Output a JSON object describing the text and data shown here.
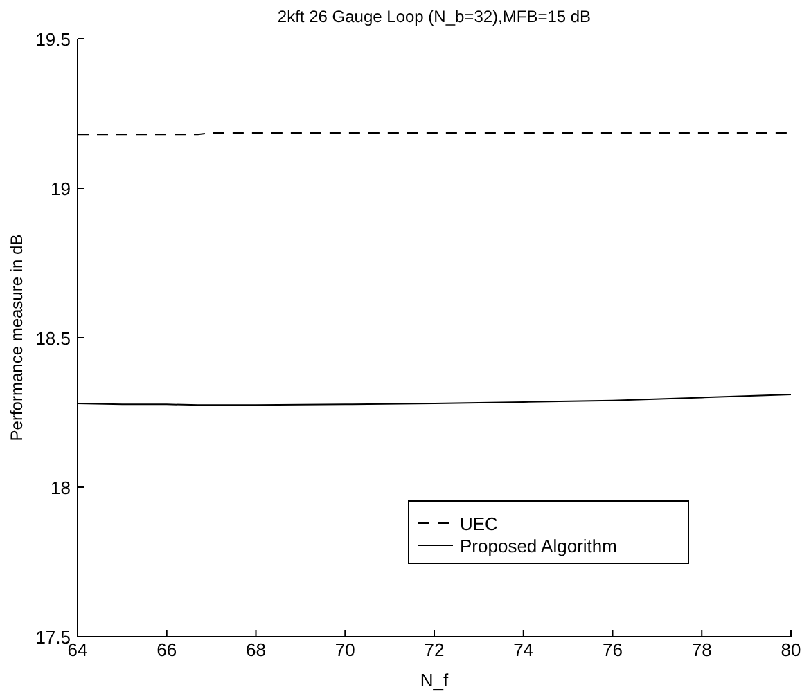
{
  "chart_data": {
    "type": "line",
    "title": "2kft 26 Gauge Loop (N_b=32),MFB=15 dB",
    "xlabel": "N_f",
    "ylabel": "Performance measure in dB",
    "x": [
      64,
      65,
      66,
      66.7,
      67,
      68,
      70,
      72,
      74,
      76,
      78,
      80
    ],
    "series": [
      {
        "name": "UEC",
        "color": "#000000",
        "line_style": "dashed",
        "values": [
          19.18,
          19.18,
          19.18,
          19.18,
          19.185,
          19.185,
          19.185,
          19.185,
          19.185,
          19.185,
          19.185,
          19.185
        ]
      },
      {
        "name": "Proposed Algorithm",
        "color": "#000000",
        "line_style": "solid",
        "values": [
          18.28,
          18.277,
          18.277,
          18.275,
          18.275,
          18.275,
          18.277,
          18.28,
          18.285,
          18.29,
          18.3,
          18.31
        ]
      }
    ],
    "xlim": [
      64,
      80
    ],
    "xticks": [
      64,
      66,
      68,
      70,
      72,
      74,
      76,
      78,
      80
    ],
    "ylim": [
      17.5,
      19.5
    ],
    "yticks": [
      17.5,
      18,
      18.5,
      19,
      19.5
    ],
    "grid": false,
    "legend": "bottom right"
  }
}
